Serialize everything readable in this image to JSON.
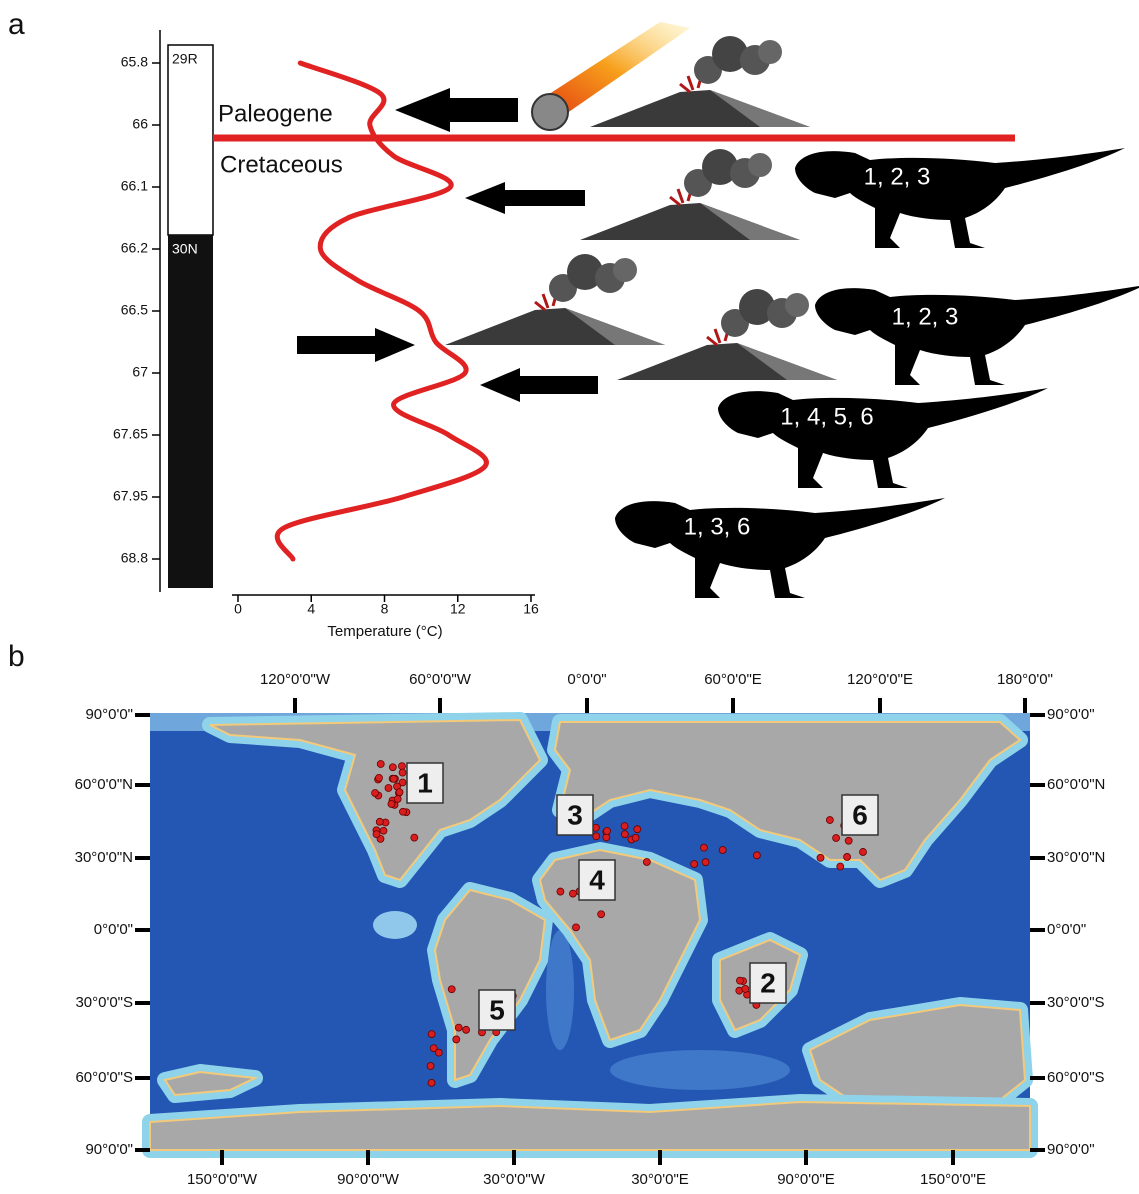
{
  "figure": {
    "panel_a_label": "a",
    "panel_b_label": "b",
    "polarity": [
      "29R",
      "30N"
    ],
    "periods": [
      "Paleogene",
      "Cretaceous"
    ],
    "dinosaur_labels": [
      "1, 2, 3",
      "1, 2, 3",
      "1, 4, 5, 6",
      "1, 3, 6"
    ]
  },
  "chart_data": {
    "type": "line",
    "x_label": "Temperature (°C)",
    "categories": [
      "65.8",
      null,
      "66",
      null,
      "66.1",
      null,
      "66.2",
      null,
      "66.5",
      null,
      "67",
      null,
      "67.65",
      null,
      "67.95",
      null,
      "68.8"
    ],
    "values": [
      3.4,
      7.8,
      7.2,
      8.5,
      11.6,
      6.0,
      4.5,
      6.5,
      9.9,
      10.8,
      12.4,
      8.5,
      11.5,
      13.5,
      9.0,
      2.5,
      3.0
    ],
    "color": "#e02222",
    "xlim": [
      0,
      16
    ],
    "xticks": [
      0,
      4,
      8,
      12,
      16
    ]
  },
  "map": {
    "top_labels": [
      "120°0'0\"W",
      "60°0'0\"W",
      "0°0'0\"",
      "60°0'0\"E",
      "120°0'0\"E",
      "180°0'0\""
    ],
    "bottom_labels": [
      "150°0'0\"W",
      "90°0'0\"W",
      "30°0'0\"W",
      "30°0'0\"E",
      "90°0'0\"E",
      "150°0'0\"E"
    ],
    "left_labels": [
      "90°0'0\"",
      "60°0'0\"N",
      "30°0'0\"N",
      "0°0'0\"",
      "30°0'0\"S",
      "60°0'0\"S",
      "90°0'0\""
    ],
    "right_labels": [
      "90°0'0\"",
      "60°0'0\"N",
      "30°0'0\"N",
      "0°0'0\"",
      "30°0'0\"S",
      "60°0'0\"S",
      "90°0'0\""
    ],
    "region_labels": [
      "1",
      "2",
      "3",
      "4",
      "5",
      "6"
    ]
  }
}
